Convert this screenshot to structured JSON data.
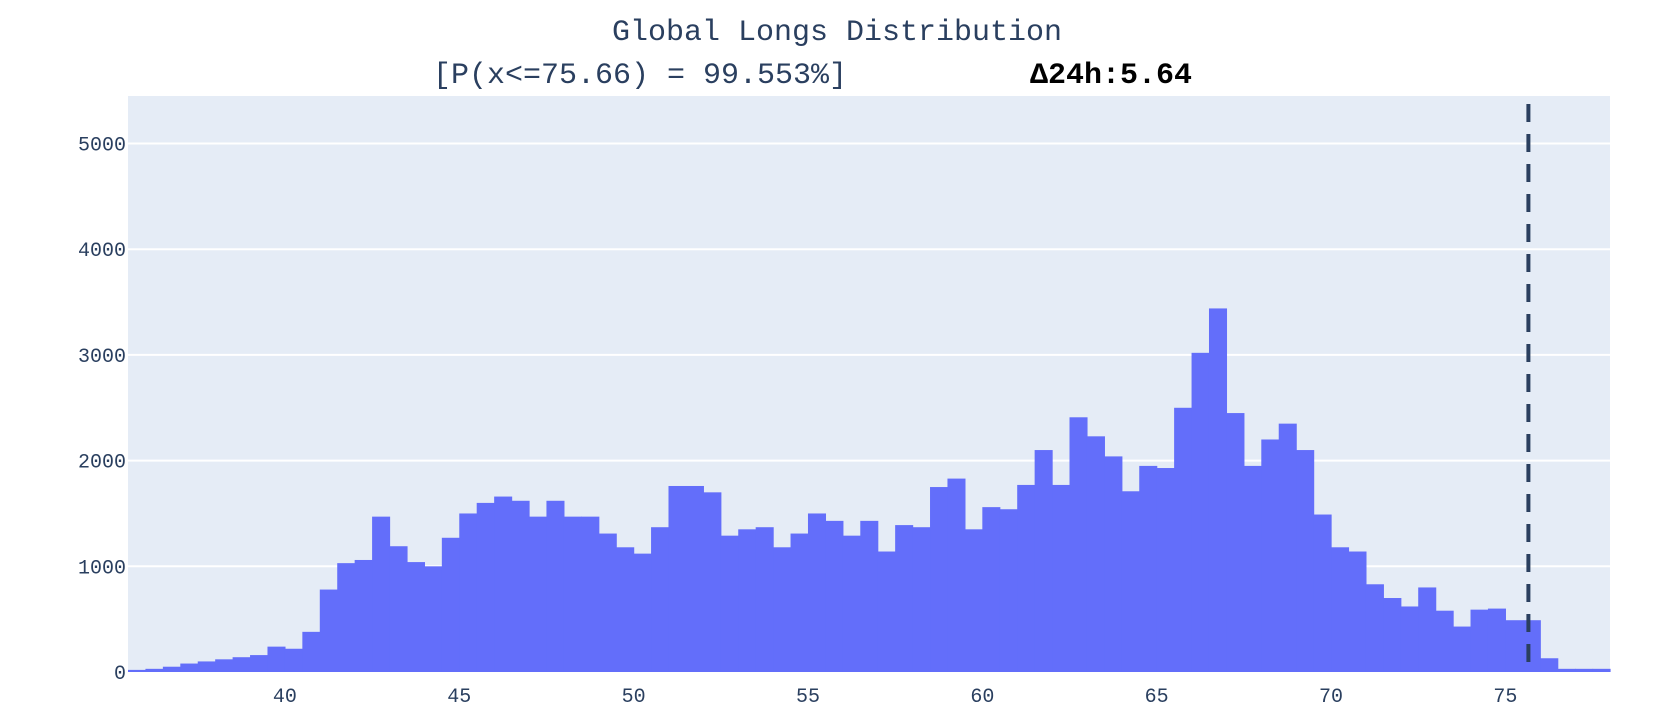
{
  "chart_data": {
    "type": "bar",
    "title": "Global Longs Distribution",
    "subtitle": "[P(x<=75.66) = 99.553%]",
    "annotation": "Δ24h:5.64",
    "xlabel": "",
    "ylabel": "",
    "xlim": [
      35.5,
      78.0
    ],
    "ylim": [
      0,
      5450
    ],
    "x_ticks": [
      40,
      45,
      50,
      55,
      60,
      65,
      70,
      75
    ],
    "y_ticks": [
      0,
      1000,
      2000,
      3000,
      4000,
      5000
    ],
    "grid": true,
    "legend": "none",
    "bin_width": 0.5,
    "reference_line": {
      "x": 75.66,
      "style": "dashed"
    },
    "colors": {
      "bar": "#636efa",
      "plot_bg": "#e5ecf6",
      "grid": "#ffffff",
      "reference_line": "#2a3f5f"
    },
    "bins": [
      [
        35.5,
        20
      ],
      [
        36.0,
        30
      ],
      [
        36.5,
        50
      ],
      [
        37.0,
        80
      ],
      [
        37.5,
        100
      ],
      [
        38.0,
        120
      ],
      [
        38.5,
        140
      ],
      [
        39.0,
        160
      ],
      [
        39.5,
        240
      ],
      [
        40.0,
        220
      ],
      [
        40.5,
        380
      ],
      [
        41.0,
        780
      ],
      [
        41.5,
        1030
      ],
      [
        42.0,
        1060
      ],
      [
        42.5,
        1470
      ],
      [
        43.0,
        1190
      ],
      [
        43.5,
        1040
      ],
      [
        44.0,
        1000
      ],
      [
        44.5,
        1270
      ],
      [
        45.0,
        1500
      ],
      [
        45.5,
        1600
      ],
      [
        46.0,
        1660
      ],
      [
        46.5,
        1620
      ],
      [
        47.0,
        1470
      ],
      [
        47.5,
        1620
      ],
      [
        48.0,
        1470
      ],
      [
        48.5,
        1470
      ],
      [
        49.0,
        1310
      ],
      [
        49.5,
        1180
      ],
      [
        50.0,
        1120
      ],
      [
        50.5,
        1370
      ],
      [
        51.0,
        1760
      ],
      [
        51.5,
        1760
      ],
      [
        52.0,
        1700
      ],
      [
        52.5,
        1290
      ],
      [
        53.0,
        1350
      ],
      [
        53.5,
        1370
      ],
      [
        54.0,
        1180
      ],
      [
        54.5,
        1310
      ],
      [
        55.0,
        1500
      ],
      [
        55.5,
        1430
      ],
      [
        56.0,
        1290
      ],
      [
        56.5,
        1430
      ],
      [
        57.0,
        1140
      ],
      [
        57.5,
        1390
      ],
      [
        58.0,
        1370
      ],
      [
        58.5,
        1750
      ],
      [
        59.0,
        1830
      ],
      [
        59.5,
        1350
      ],
      [
        60.0,
        1560
      ],
      [
        60.5,
        1540
      ],
      [
        61.0,
        1770
      ],
      [
        61.5,
        2100
      ],
      [
        62.0,
        1770
      ],
      [
        62.5,
        2410
      ],
      [
        63.0,
        2230
      ],
      [
        63.5,
        2040
      ],
      [
        64.0,
        1710
      ],
      [
        64.5,
        1950
      ],
      [
        65.0,
        1930
      ],
      [
        65.5,
        2500
      ],
      [
        66.0,
        3020
      ],
      [
        66.5,
        3440
      ],
      [
        67.0,
        2450
      ],
      [
        67.5,
        1950
      ],
      [
        68.0,
        2200
      ],
      [
        68.5,
        2350
      ],
      [
        69.0,
        2100
      ],
      [
        69.5,
        1490
      ],
      [
        70.0,
        1180
      ],
      [
        70.5,
        1140
      ],
      [
        71.0,
        830
      ],
      [
        71.5,
        700
      ],
      [
        72.0,
        620
      ],
      [
        72.5,
        800
      ],
      [
        73.0,
        580
      ],
      [
        73.5,
        430
      ],
      [
        74.0,
        590
      ],
      [
        74.5,
        600
      ],
      [
        75.0,
        490
      ],
      [
        75.5,
        490
      ],
      [
        76.0,
        130
      ],
      [
        76.5,
        30
      ],
      [
        77.0,
        30
      ],
      [
        77.5,
        30
      ]
    ]
  }
}
